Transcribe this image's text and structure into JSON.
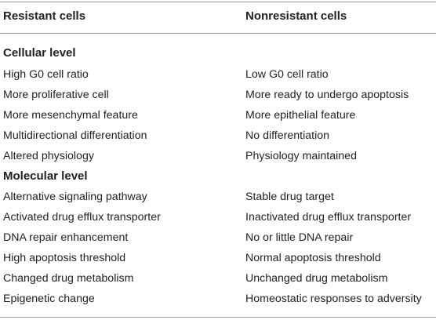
{
  "header": {
    "col1": "Resistant cells",
    "col2": "Nonresistant cells"
  },
  "sections": [
    {
      "title": "Cellular level",
      "rows": [
        {
          "resistant": "High G0 cell ratio",
          "nonresistant": "Low G0 cell ratio"
        },
        {
          "resistant": "More proliferative cell",
          "nonresistant": "More ready to undergo apoptosis"
        },
        {
          "resistant": "More mesenchymal feature",
          "nonresistant": "More epithelial feature"
        },
        {
          "resistant": "Multidirectional differentiation",
          "nonresistant": "No differentiation"
        },
        {
          "resistant": "Altered physiology",
          "nonresistant": "Physiology maintained"
        }
      ]
    },
    {
      "title": "Molecular level",
      "rows": [
        {
          "resistant": "Alternative signaling pathway",
          "nonresistant": "Stable drug target"
        },
        {
          "resistant": "Activated drug efflux transporter",
          "nonresistant": "Inactivated drug efflux transporter"
        },
        {
          "resistant": "DNA repair enhancement",
          "nonresistant": "No or little DNA repair"
        },
        {
          "resistant": "High apoptosis threshold",
          "nonresistant": "Normal apoptosis threshold"
        },
        {
          "resistant": "Changed drug metabolism",
          "nonresistant": "Unchanged drug metabolism"
        },
        {
          "resistant": "Epigenetic change",
          "nonresistant": "Homeostatic responses to adversity"
        }
      ]
    }
  ]
}
